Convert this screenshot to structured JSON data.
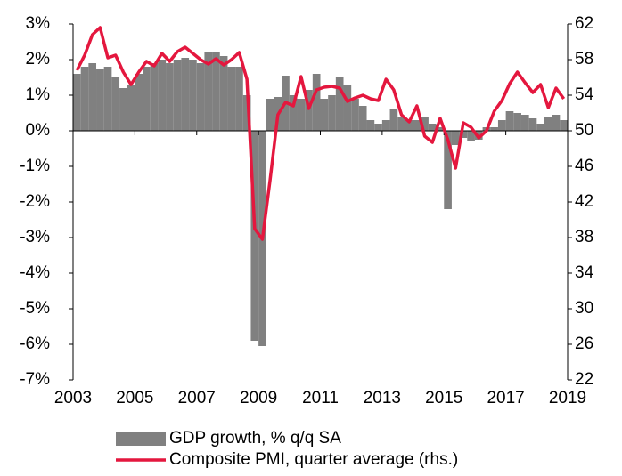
{
  "chart_data": {
    "type": "bar_line",
    "x": [
      2003.125,
      2003.375,
      2003.625,
      2003.875,
      2004.125,
      2004.375,
      2004.625,
      2004.875,
      2005.125,
      2005.375,
      2005.625,
      2005.875,
      2006.125,
      2006.375,
      2006.625,
      2006.875,
      2007.125,
      2007.375,
      2007.625,
      2007.875,
      2008.125,
      2008.375,
      2008.625,
      2008.875,
      2009.125,
      2009.375,
      2009.625,
      2009.875,
      2010.125,
      2010.375,
      2010.625,
      2010.875,
      2011.125,
      2011.375,
      2011.625,
      2011.875,
      2012.125,
      2012.375,
      2012.625,
      2012.875,
      2013.125,
      2013.375,
      2013.625,
      2013.875,
      2014.125,
      2014.375,
      2014.625,
      2014.875,
      2015.125,
      2015.375,
      2015.625,
      2015.875,
      2016.125,
      2016.375,
      2016.625,
      2016.875,
      2017.125,
      2017.375,
      2017.625,
      2017.875,
      2018.125,
      2018.375,
      2018.625,
      2018.875
    ],
    "series": [
      {
        "name": "GDP growth, % q/q SA",
        "type": "bar",
        "color": "#808080",
        "axis": "y",
        "values": [
          1.6,
          1.8,
          1.9,
          1.75,
          1.8,
          1.5,
          1.2,
          1.3,
          1.6,
          1.8,
          1.9,
          2.0,
          1.9,
          2.0,
          2.05,
          2.0,
          1.9,
          2.2,
          2.2,
          2.1,
          1.8,
          1.8,
          1.0,
          -5.9,
          -6.05,
          0.9,
          0.95,
          1.55,
          1.0,
          0.9,
          1.15,
          1.6,
          0.9,
          1.0,
          1.5,
          1.3,
          0.9,
          0.7,
          0.3,
          0.2,
          0.3,
          0.6,
          0.4,
          0.3,
          0.3,
          0.4,
          0.2,
          0.1,
          -2.2,
          -0.4,
          -0.2,
          -0.3,
          -0.25,
          0.1,
          0.1,
          0.3,
          0.55,
          0.5,
          0.45,
          0.35,
          0.2,
          0.4,
          0.45,
          0.3
        ]
      },
      {
        "name": "Composite PMI, quarter average (rhs.)",
        "type": "line",
        "color": "#e4173e",
        "axis": "y2",
        "values": [
          56.8,
          58.5,
          60.8,
          61.6,
          58.2,
          58.5,
          56.6,
          55.2,
          56.6,
          57.8,
          57.3,
          58.7,
          57.8,
          58.9,
          59.4,
          58.7,
          58.0,
          57.5,
          58.1,
          57.4,
          58.0,
          58.8,
          55.8,
          39.0,
          37.8,
          44.5,
          51.8,
          53.2,
          52.8,
          56.1,
          52.5,
          54.6,
          54.9,
          55.0,
          54.8,
          53.3,
          53.7,
          54.0,
          53.6,
          53.4,
          55.8,
          54.6,
          51.8,
          51.0,
          52.8,
          49.4,
          48.7,
          51.4,
          49.0,
          45.8,
          50.9,
          50.4,
          49.2,
          50.0,
          52.2,
          53.4,
          55.3,
          56.6,
          55.4,
          54.3,
          55.2,
          52.6,
          54.8,
          53.6
        ]
      }
    ],
    "xlim": [
      2003,
      2019
    ],
    "xticks": [
      2003,
      2005,
      2007,
      2009,
      2011,
      2013,
      2015,
      2017,
      2019
    ],
    "ylim": [
      -7,
      3
    ],
    "yticks": [
      {
        "value": -7,
        "label": "-7%"
      },
      {
        "value": -6,
        "label": "-6%"
      },
      {
        "value": -5,
        "label": "-5%"
      },
      {
        "value": -4,
        "label": "-4%"
      },
      {
        "value": -3,
        "label": "-3%"
      },
      {
        "value": -2,
        "label": "-2%"
      },
      {
        "value": -1,
        "label": "-1%"
      },
      {
        "value": 0,
        "label": "0%"
      },
      {
        "value": 1,
        "label": "1%"
      },
      {
        "value": 2,
        "label": "2%"
      },
      {
        "value": 3,
        "label": "3%"
      }
    ],
    "y2lim": [
      22,
      62
    ],
    "y2ticks": [
      22,
      26,
      30,
      34,
      38,
      42,
      46,
      50,
      54,
      58,
      62
    ]
  }
}
